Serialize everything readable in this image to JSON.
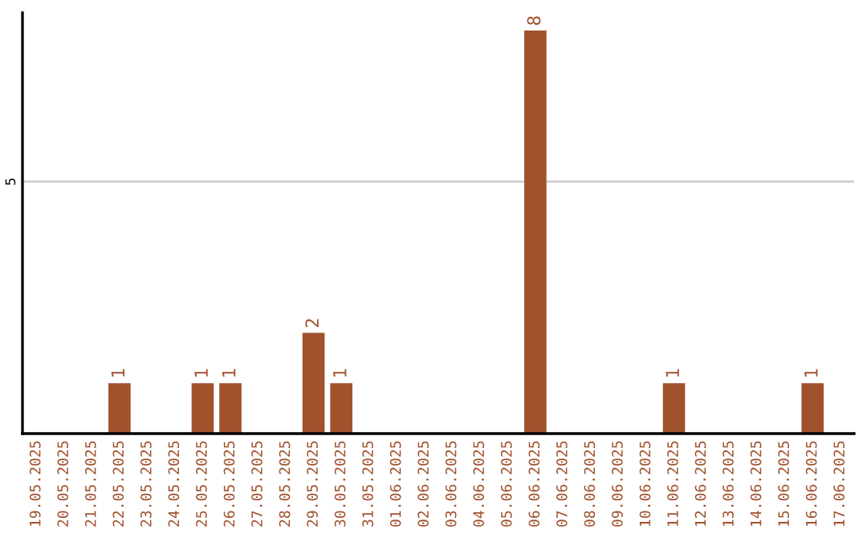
{
  "chart_data": {
    "type": "bar",
    "categories": [
      "19.05.2025",
      "20.05.2025",
      "21.05.2025",
      "22.05.2025",
      "23.05.2025",
      "24.05.2025",
      "25.05.2025",
      "26.05.2025",
      "27.05.2025",
      "28.05.2025",
      "29.05.2025",
      "30.05.2025",
      "31.05.2025",
      "01.06.2025",
      "02.06.2025",
      "03.06.2025",
      "04.06.2025",
      "05.06.2025",
      "06.06.2025",
      "07.06.2025",
      "08.06.2025",
      "09.06.2025",
      "10.06.2025",
      "11.06.2025",
      "12.06.2025",
      "13.06.2025",
      "14.06.2025",
      "15.06.2025",
      "16.06.2025",
      "17.06.2025"
    ],
    "values": [
      0,
      0,
      0,
      1,
      0,
      0,
      1,
      1,
      0,
      0,
      2,
      1,
      0,
      0,
      0,
      0,
      0,
      0,
      8,
      0,
      0,
      0,
      0,
      1,
      0,
      0,
      0,
      0,
      1,
      0
    ],
    "value_labels": [
      null,
      null,
      null,
      "1",
      null,
      null,
      "1",
      "1",
      null,
      null,
      "2",
      "1",
      null,
      null,
      null,
      null,
      null,
      null,
      "8",
      null,
      null,
      null,
      null,
      "1",
      null,
      null,
      null,
      null,
      "1",
      null
    ],
    "color": "#a0522d",
    "ylim": [
      0,
      8.35
    ],
    "yticks": [
      5
    ],
    "grid": "y"
  }
}
